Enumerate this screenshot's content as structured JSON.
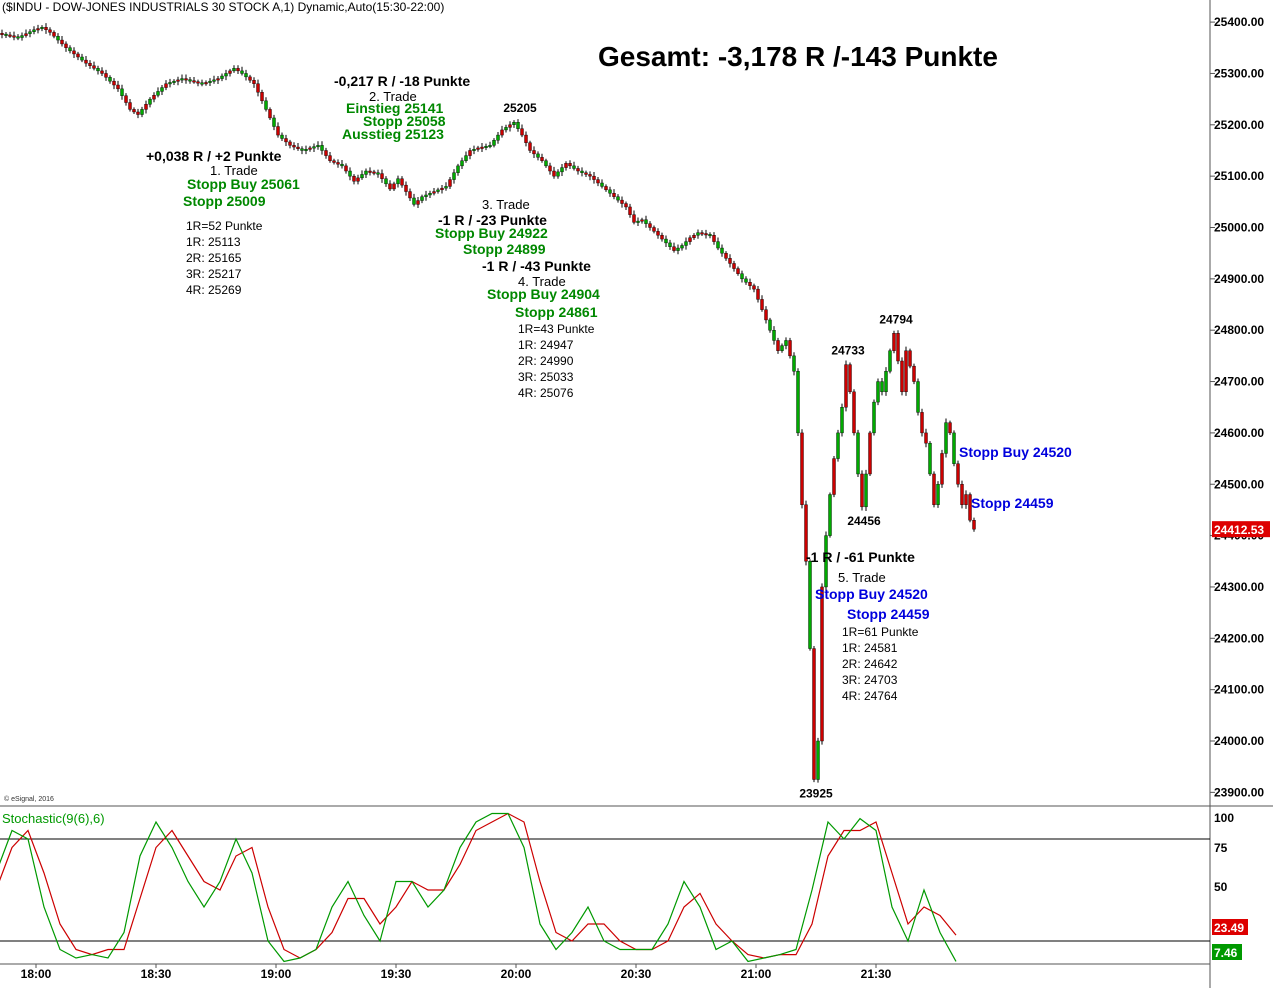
{
  "chart_data": {
    "type": "candlestick",
    "title": "($INDU - DOW-JONES INDUSTRIALS 30 STOCK A,1) Dynamic,Auto(15:30-22:00)",
    "headline": "Gesamt: -3,178 R /-143 Punkte",
    "copyright": "© eSignal, 2016",
    "last_price_label": "24412.53",
    "price_axis": {
      "ticks": [
        25400,
        25300,
        25200,
        25100,
        25000,
        24900,
        24800,
        24700,
        24600,
        24500,
        24400,
        24300,
        24200,
        24100,
        24000,
        23900
      ],
      "tick_labels": [
        "25400.00",
        "25300.00",
        "25200.00",
        "25100.00",
        "25000.00",
        "24900.00",
        "24800.00",
        "24700.00",
        "24600.00",
        "24500.00",
        "24400.00",
        "24300.00",
        "24200.00",
        "24100.00",
        "24000.00",
        "23900.00"
      ],
      "ylim": [
        23870,
        25440
      ]
    },
    "time_axis": {
      "labels": [
        "18:00",
        "18:30",
        "19:00",
        "19:30",
        "20:00",
        "20:30",
        "21:00",
        "21:30"
      ],
      "minutes": [
        0,
        30,
        60,
        90,
        120,
        150,
        180,
        210
      ],
      "xlim": [
        -10,
        232
      ]
    },
    "price_path": [
      [
        -10,
        25380
      ],
      [
        -4,
        25370
      ],
      [
        0,
        25385
      ],
      [
        2,
        25390
      ],
      [
        4,
        25380
      ],
      [
        8,
        25350
      ],
      [
        13,
        25320
      ],
      [
        17,
        25300
      ],
      [
        21,
        25270
      ],
      [
        24,
        25230
      ],
      [
        26,
        25220
      ],
      [
        29,
        25250
      ],
      [
        33,
        25280
      ],
      [
        37,
        25290
      ],
      [
        42,
        25280
      ],
      [
        46,
        25290
      ],
      [
        50,
        25310
      ],
      [
        52,
        25300
      ],
      [
        55,
        25280
      ],
      [
        58,
        25230
      ],
      [
        61,
        25180
      ],
      [
        64,
        25160
      ],
      [
        67,
        25150
      ],
      [
        71,
        25160
      ],
      [
        74,
        25130
      ],
      [
        77,
        25120
      ],
      [
        80,
        25090
      ],
      [
        83,
        25110
      ],
      [
        86,
        25105
      ],
      [
        89,
        25075
      ],
      [
        91,
        25095
      ],
      [
        93,
        25070
      ],
      [
        95,
        25045
      ],
      [
        97,
        25060
      ],
      [
        100,
        25070
      ],
      [
        103,
        25080
      ],
      [
        106,
        25120
      ],
      [
        109,
        25150
      ],
      [
        111,
        25155
      ],
      [
        114,
        25160
      ],
      [
        117,
        25190
      ],
      [
        120,
        25205
      ],
      [
        122,
        25180
      ],
      [
        124,
        25150
      ],
      [
        127,
        25130
      ],
      [
        130,
        25100
      ],
      [
        133,
        25125
      ],
      [
        136,
        25110
      ],
      [
        139,
        25100
      ],
      [
        142,
        25080
      ],
      [
        145,
        25060
      ],
      [
        148,
        25040
      ],
      [
        150,
        25010
      ],
      [
        152,
        25015
      ],
      [
        154,
        25000
      ],
      [
        156,
        24985
      ],
      [
        158,
        24970
      ],
      [
        160,
        24955
      ],
      [
        162,
        24965
      ],
      [
        164,
        24980
      ],
      [
        166,
        24990
      ],
      [
        169,
        24985
      ],
      [
        171,
        24960
      ],
      [
        173,
        24940
      ],
      [
        175,
        24920
      ],
      [
        177,
        24900
      ],
      [
        180,
        24880
      ],
      [
        182,
        24840
      ],
      [
        184,
        24800
      ],
      [
        186,
        24760
      ],
      [
        188,
        24780
      ],
      [
        190,
        24720
      ],
      [
        191,
        24600
      ],
      [
        192,
        24460
      ],
      [
        193,
        24350
      ],
      [
        194,
        24180
      ],
      [
        195,
        23925
      ],
      [
        196,
        24000
      ],
      [
        197,
        24300
      ],
      [
        198,
        24400
      ],
      [
        199,
        24480
      ],
      [
        200,
        24550
      ],
      [
        201,
        24600
      ],
      [
        202,
        24650
      ],
      [
        203,
        24733
      ],
      [
        204,
        24680
      ],
      [
        205,
        24600
      ],
      [
        206,
        24520
      ],
      [
        207,
        24456
      ],
      [
        208,
        24520
      ],
      [
        209,
        24600
      ],
      [
        210,
        24660
      ],
      [
        211,
        24700
      ],
      [
        212,
        24680
      ],
      [
        213,
        24720
      ],
      [
        214,
        24760
      ],
      [
        215,
        24794
      ],
      [
        216,
        24740
      ],
      [
        217,
        24680
      ],
      [
        218,
        24760
      ],
      [
        219,
        24730
      ],
      [
        220,
        24700
      ],
      [
        221,
        24640
      ],
      [
        222,
        24600
      ],
      [
        223,
        24580
      ],
      [
        224,
        24520
      ],
      [
        225,
        24460
      ],
      [
        226,
        24500
      ],
      [
        227,
        24560
      ],
      [
        228,
        24620
      ],
      [
        229,
        24600
      ],
      [
        230,
        24540
      ],
      [
        231,
        24500
      ],
      [
        232,
        24460
      ],
      [
        233,
        24480
      ],
      [
        234,
        24430
      ],
      [
        235,
        24412.53
      ]
    ],
    "price_marks": [
      {
        "label": "25205",
        "t": 121,
        "p": 25205,
        "pos": "above"
      },
      {
        "label": "24794",
        "t": 215,
        "p": 24794,
        "pos": "above"
      },
      {
        "label": "24733",
        "t": 203,
        "p": 24733,
        "pos": "above"
      },
      {
        "label": "24456",
        "t": 207,
        "p": 24456,
        "pos": "below"
      },
      {
        "label": "23925",
        "t": 195,
        "p": 23925,
        "pos": "below"
      }
    ],
    "trades": [
      {
        "result": "+0,038 R / +2 Punkte",
        "name": "1. Trade",
        "entry": "Stopp Buy 25061",
        "stop": "Stopp 25009",
        "levels": [
          "1R=52 Punkte",
          "1R: 25113",
          "2R: 25165",
          "3R: 25217",
          "4R: 25269"
        ]
      },
      {
        "result": "-0,217 R / -18 Punkte",
        "name": "2. Trade",
        "entry": "Einstieg 25141",
        "stop": "Stopp 25058",
        "exit": "Ausstieg 25123"
      },
      {
        "result": "-1 R / -23 Punkte",
        "name": "3. Trade",
        "entry": "Stopp Buy 24922",
        "stop": "Stopp 24899"
      },
      {
        "result": "-1 R / -43 Punkte",
        "name": "4. Trade",
        "entry": "Stopp Buy 24904",
        "stop": "Stopp 24861",
        "levels": [
          "1R=43 Punkte",
          "1R: 24947",
          "2R: 24990",
          "3R: 25033",
          "4R: 25076"
        ]
      },
      {
        "result": "-1 R / -61 Punkte",
        "name": "5. Trade",
        "entry": "Stopp Buy 24520",
        "stop": "Stopp 24459",
        "levels": [
          "1R=61 Punkte",
          "1R: 24581",
          "2R: 24642",
          "3R: 24703",
          "4R: 24764"
        ]
      }
    ],
    "side_labels": [
      "Stopp Buy 24520",
      "Stopp 24459"
    ],
    "stochastic": {
      "title": "Stochastic(9(6),6)",
      "ticks": [
        100,
        75,
        50
      ],
      "levels": [
        80,
        20
      ],
      "last_k": "7.46",
      "last_d": "23.49",
      "k_color": "#009900",
      "d_color": "#cc0000",
      "k_path": [
        [
          -10,
          60
        ],
        [
          -6,
          85
        ],
        [
          -2,
          80
        ],
        [
          2,
          40
        ],
        [
          6,
          15
        ],
        [
          10,
          10
        ],
        [
          14,
          12
        ],
        [
          18,
          10
        ],
        [
          22,
          25
        ],
        [
          26,
          70
        ],
        [
          30,
          90
        ],
        [
          34,
          75
        ],
        [
          38,
          55
        ],
        [
          42,
          40
        ],
        [
          46,
          55
        ],
        [
          50,
          80
        ],
        [
          54,
          60
        ],
        [
          58,
          20
        ],
        [
          62,
          8
        ],
        [
          66,
          10
        ],
        [
          70,
          15
        ],
        [
          74,
          40
        ],
        [
          78,
          55
        ],
        [
          82,
          35
        ],
        [
          86,
          20
        ],
        [
          90,
          55
        ],
        [
          94,
          55
        ],
        [
          98,
          40
        ],
        [
          102,
          50
        ],
        [
          106,
          75
        ],
        [
          110,
          90
        ],
        [
          114,
          95
        ],
        [
          118,
          95
        ],
        [
          122,
          75
        ],
        [
          126,
          30
        ],
        [
          130,
          15
        ],
        [
          134,
          25
        ],
        [
          138,
          40
        ],
        [
          142,
          20
        ],
        [
          146,
          15
        ],
        [
          150,
          15
        ],
        [
          154,
          15
        ],
        [
          158,
          30
        ],
        [
          162,
          55
        ],
        [
          166,
          40
        ],
        [
          170,
          15
        ],
        [
          174,
          20
        ],
        [
          178,
          8
        ],
        [
          182,
          10
        ],
        [
          186,
          12
        ],
        [
          190,
          15
        ],
        [
          194,
          50
        ],
        [
          198,
          90
        ],
        [
          202,
          80
        ],
        [
          206,
          92
        ],
        [
          210,
          85
        ],
        [
          214,
          40
        ],
        [
          218,
          20
        ],
        [
          222,
          50
        ],
        [
          226,
          25
        ],
        [
          230,
          8
        ]
      ],
      "d_path": [
        [
          -10,
          50
        ],
        [
          -6,
          75
        ],
        [
          -2,
          85
        ],
        [
          2,
          60
        ],
        [
          6,
          30
        ],
        [
          10,
          15
        ],
        [
          14,
          12
        ],
        [
          18,
          15
        ],
        [
          22,
          15
        ],
        [
          26,
          45
        ],
        [
          30,
          75
        ],
        [
          34,
          85
        ],
        [
          38,
          70
        ],
        [
          42,
          55
        ],
        [
          46,
          50
        ],
        [
          50,
          70
        ],
        [
          54,
          75
        ],
        [
          58,
          40
        ],
        [
          62,
          15
        ],
        [
          66,
          10
        ],
        [
          70,
          15
        ],
        [
          74,
          25
        ],
        [
          78,
          45
        ],
        [
          82,
          45
        ],
        [
          86,
          30
        ],
        [
          90,
          40
        ],
        [
          94,
          55
        ],
        [
          98,
          50
        ],
        [
          102,
          50
        ],
        [
          106,
          65
        ],
        [
          110,
          85
        ],
        [
          114,
          90
        ],
        [
          118,
          95
        ],
        [
          122,
          90
        ],
        [
          126,
          55
        ],
        [
          130,
          25
        ],
        [
          134,
          20
        ],
        [
          138,
          30
        ],
        [
          142,
          30
        ],
        [
          146,
          20
        ],
        [
          150,
          15
        ],
        [
          154,
          15
        ],
        [
          158,
          20
        ],
        [
          162,
          40
        ],
        [
          166,
          48
        ],
        [
          170,
          30
        ],
        [
          174,
          20
        ],
        [
          178,
          12
        ],
        [
          182,
          10
        ],
        [
          186,
          12
        ],
        [
          190,
          12
        ],
        [
          194,
          30
        ],
        [
          198,
          70
        ],
        [
          202,
          85
        ],
        [
          206,
          85
        ],
        [
          210,
          90
        ],
        [
          214,
          60
        ],
        [
          218,
          30
        ],
        [
          222,
          40
        ],
        [
          226,
          35
        ],
        [
          230,
          23.49
        ]
      ]
    }
  }
}
